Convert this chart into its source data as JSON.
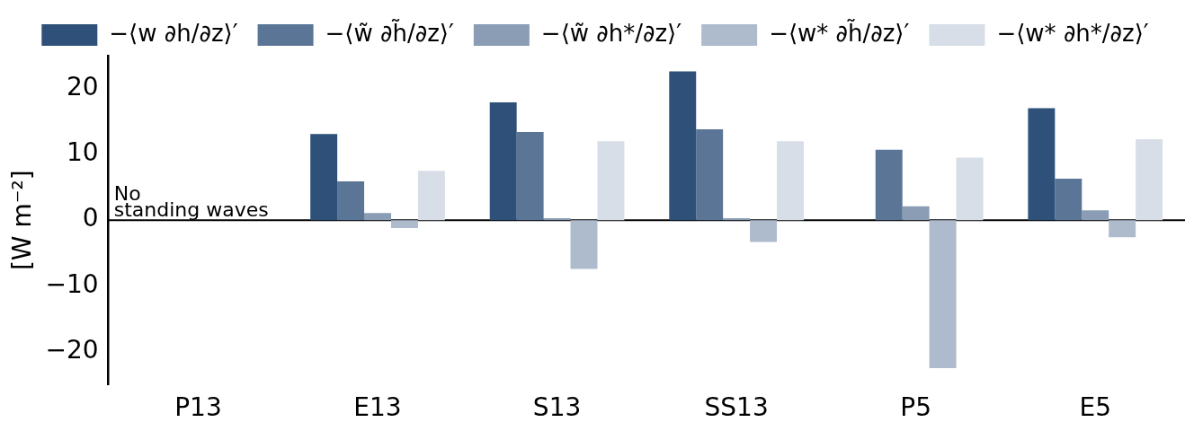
{
  "chart_data": {
    "type": "bar",
    "ylabel": "[W m⁻²]",
    "categories": [
      "P13",
      "E13",
      "S13",
      "SS13",
      "P5",
      "E5"
    ],
    "series": [
      {
        "name": "−⟨w ∂h/∂z⟩′",
        "color": "#2e5079",
        "values": [
          null,
          13.1,
          17.9,
          22.6,
          null,
          17.0
        ]
      },
      {
        "name": "−⟨w̃ ∂h̃/∂z⟩′",
        "color": "#5a7596",
        "values": [
          null,
          5.9,
          13.4,
          13.8,
          10.7,
          6.3
        ]
      },
      {
        "name": "−⟨w̃ ∂h*/∂z⟩′",
        "color": "#8a9db5",
        "values": [
          null,
          1.1,
          0.3,
          0.3,
          2.1,
          1.5
        ]
      },
      {
        "name": "−⟨w* ∂h̃/∂z⟩′",
        "color": "#aebbcd",
        "values": [
          null,
          -1.2,
          -7.4,
          -3.3,
          -22.5,
          -2.6
        ]
      },
      {
        "name": "−⟨w* ∂h*/∂z⟩′",
        "color": "#d8dee7",
        "values": [
          null,
          7.5,
          12.0,
          12.0,
          9.5,
          12.3
        ]
      }
    ],
    "ylim": [
      -25,
      25
    ],
    "yticks": [
      {
        "value": -20,
        "label": "−20"
      },
      {
        "value": -10,
        "label": "−10"
      },
      0,
      10,
      20
    ],
    "ref_lines": [
      {
        "axis": "y",
        "value": 0,
        "color": "#000000"
      }
    ],
    "annotations": [
      {
        "text": "No\nstanding waves",
        "x": "P13",
        "y": 0
      }
    ],
    "grid": false,
    "legend": "top"
  }
}
